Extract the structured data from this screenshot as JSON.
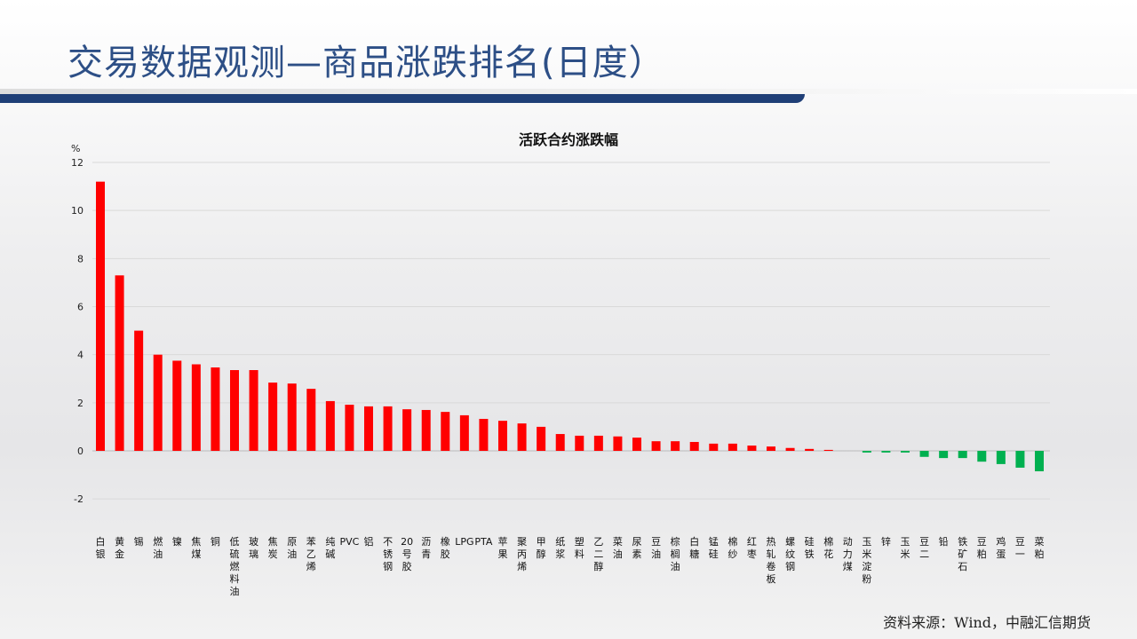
{
  "header": {
    "title": "交易数据观测—商品涨跌排名(日度）"
  },
  "footer": {
    "source": "资料来源：Wind，中融汇信期货"
  },
  "chart_data": {
    "type": "bar",
    "title": "活跃合约涨跌幅",
    "ylabel": "%",
    "xlabel": "",
    "ylim": [
      -2,
      12
    ],
    "yticks": [
      -2,
      0,
      2,
      4,
      6,
      8,
      10,
      12
    ],
    "grid": true,
    "colors": {
      "positive": "#ff0000",
      "negative": "#00b050"
    },
    "categories": [
      "白银",
      "黄金",
      "锡",
      "燃油",
      "镍",
      "焦煤",
      "铜",
      "低硫燃料油",
      "玻璃",
      "焦炭",
      "原油",
      "苯乙烯",
      "纯碱",
      "PVC",
      "铝",
      "不锈钢",
      "20号胶",
      "沥青",
      "橡胶",
      "LPG",
      "PTA",
      "苹果",
      "聚丙烯",
      "甲醇",
      "纸浆",
      "塑料",
      "乙二醇",
      "菜油",
      "尿素",
      "豆油",
      "棕榈油",
      "白糖",
      "锰硅",
      "棉纱",
      "红枣",
      "热轧卷板",
      "螺纹钢",
      "硅铁",
      "棉花",
      "动力煤",
      "玉米淀粉",
      "锌",
      "玉米",
      "豆二",
      "铅",
      "铁矿石",
      "豆粕",
      "鸡蛋",
      "豆一",
      "菜粕"
    ],
    "values": [
      11.2,
      7.3,
      5.0,
      4.0,
      3.75,
      3.6,
      3.47,
      3.36,
      3.36,
      2.84,
      2.8,
      2.58,
      2.07,
      1.92,
      1.85,
      1.85,
      1.73,
      1.7,
      1.62,
      1.48,
      1.33,
      1.25,
      1.14,
      1.0,
      0.7,
      0.63,
      0.63,
      0.6,
      0.55,
      0.4,
      0.4,
      0.37,
      0.3,
      0.3,
      0.22,
      0.18,
      0.12,
      0.08,
      0.04,
      0.0,
      -0.07,
      -0.07,
      -0.07,
      -0.25,
      -0.3,
      -0.3,
      -0.45,
      -0.55,
      -0.7,
      -0.85
    ]
  }
}
